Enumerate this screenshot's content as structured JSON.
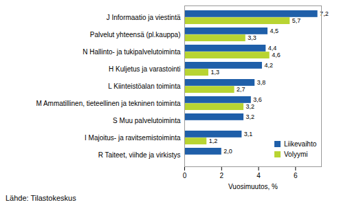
{
  "chart_data": {
    "type": "bar",
    "orientation": "horizontal",
    "x_label": "Vuosimuutos, %",
    "caption": "Lähde: Tilastokeskus",
    "categories": [
      "J Informaatio ja viestintä",
      "Palvelut yhteensä (pl.kauppa)",
      "N Hallinto- ja tukipalvelutoiminta",
      "H Kuljetus ja varastointi",
      "L Kiinteistöalan toiminta",
      "M Ammatillinen, tieteellinen ja tekninen toiminta",
      "S Muu palvelutoiminta",
      "I Majoitus- ja ravitsemistoiminta",
      "R Taiteet, viihde ja virkistys"
    ],
    "series": [
      {
        "name": "Liikevaihto",
        "color": "#1f5fa9",
        "values": [
          7.2,
          4.5,
          4.4,
          4.2,
          3.8,
          3.6,
          3.2,
          3.1,
          2.0
        ],
        "value_labels": [
          "7,2",
          "4,5",
          "4,4",
          "4,2",
          "3,8",
          "3,6",
          "3,2",
          "3,1",
          "2,0"
        ]
      },
      {
        "name": "Volyymi",
        "color": "#b8d432",
        "values": [
          5.7,
          3.3,
          4.6,
          1.3,
          2.7,
          3.2,
          null,
          1.2,
          null
        ],
        "value_labels": [
          "5,7",
          "3,3",
          "4,6",
          "1,3",
          "2,7",
          "3,2",
          null,
          "1,2",
          null
        ]
      }
    ],
    "xlim": [
      0,
      7.4
    ],
    "xticks": [
      0,
      2,
      4,
      6
    ],
    "grid": false,
    "data_labels": true,
    "legend": "bottom-right"
  }
}
